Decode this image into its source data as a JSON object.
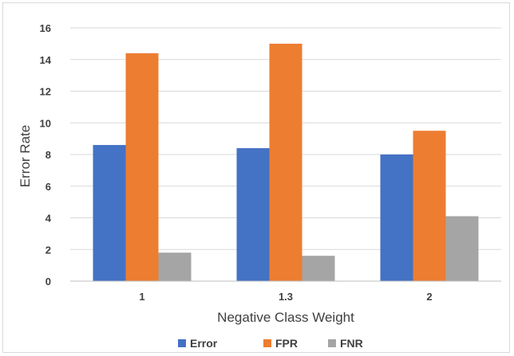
{
  "chart_data": {
    "type": "bar",
    "title": "",
    "xlabel": "Negative Class Weight",
    "ylabel": "Error Rate",
    "categories": [
      "1",
      "1.3",
      "2"
    ],
    "series": [
      {
        "name": "Error",
        "values": [
          8.6,
          8.4,
          8.0
        ],
        "color": "#4472c4"
      },
      {
        "name": "FPR",
        "values": [
          14.4,
          15.0,
          9.5
        ],
        "color": "#ed7d31"
      },
      {
        "name": "FNR",
        "values": [
          1.8,
          1.6,
          4.1
        ],
        "color": "#a5a5a5"
      }
    ],
    "ylim": [
      0,
      16
    ],
    "yticks": [
      0,
      2,
      4,
      6,
      8,
      10,
      12,
      14,
      16
    ],
    "grid": true,
    "legend_position": "bottom"
  }
}
